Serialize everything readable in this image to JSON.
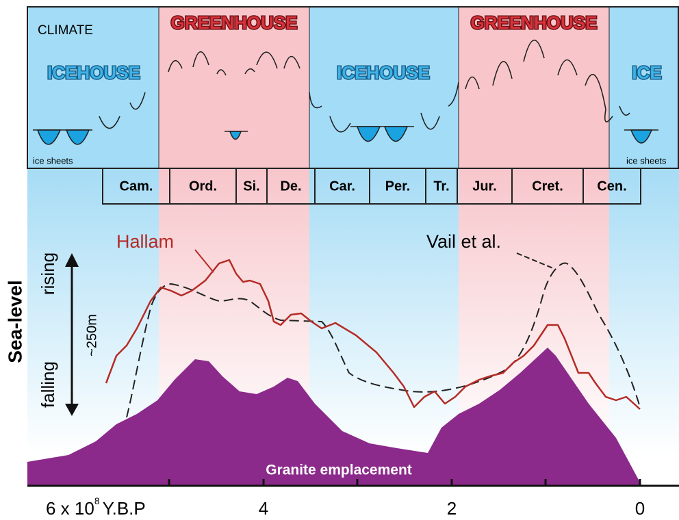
{
  "climate_label": "CLIMATE",
  "climate_bands": [
    "ICEHOUSE",
    "GREENHOUSE",
    "ICEHOUSE",
    "GREENHOUSE",
    "ICE"
  ],
  "ice_sheets_labels": [
    "ice sheets",
    "ice sheets"
  ],
  "periods": [
    "Cam.",
    "Ord.",
    "Si.",
    "De.",
    "Car.",
    "Per.",
    "Tr.",
    "Jur.",
    "Cret.",
    "Cen."
  ],
  "curves": {
    "hallam": "Hallam",
    "vail": "Vail et al."
  },
  "y_axis": {
    "title": "Sea-level",
    "rising": "rising",
    "falling": "falling",
    "scale": "~250m"
  },
  "granite_label": "Granite emplacement",
  "x_axis": {
    "first_label": {
      "prefix": "6 x 10",
      "exponent": "8",
      "unit": "Y.B.P"
    },
    "tick_labels": [
      "4",
      "2",
      "0"
    ]
  }
}
